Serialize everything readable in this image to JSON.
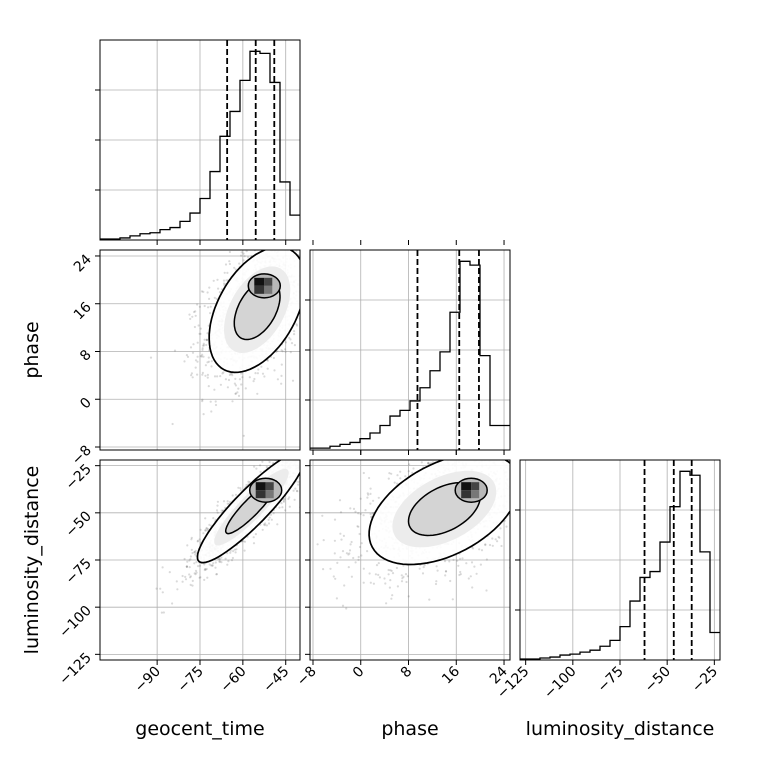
{
  "chart_data": {
    "type": "corner",
    "grid": true,
    "parameters": [
      "geocent_time",
      "phase",
      "luminosity_distance"
    ],
    "axis_labels": {
      "geocent_time": "geocent_time",
      "phase": "phase",
      "luminosity_distance": "luminosity_distance"
    },
    "ranges": {
      "geocent_time": [
        -110,
        -40
      ],
      "phase": [
        -8.5,
        25
      ],
      "luminosity_distance": [
        -128,
        -22
      ]
    },
    "ticks": {
      "geocent_time": [
        {
          "v": -90,
          "label": "−90"
        },
        {
          "v": -75,
          "label": "−75"
        },
        {
          "v": -60,
          "label": "−60"
        },
        {
          "v": -45,
          "label": "−45"
        }
      ],
      "phase": [
        {
          "v": -8,
          "label": "−8"
        },
        {
          "v": 0,
          "label": "0"
        },
        {
          "v": 8,
          "label": "8"
        },
        {
          "v": 16,
          "label": "16"
        },
        {
          "v": 24,
          "label": "24"
        }
      ],
      "luminosity_distance": [
        {
          "v": -125,
          "label": "−125"
        },
        {
          "v": -100,
          "label": "−100"
        },
        {
          "v": -75,
          "label": "−75"
        },
        {
          "v": -50,
          "label": "−50"
        },
        {
          "v": -25,
          "label": "−25"
        }
      ]
    },
    "histograms": {
      "geocent_time": {
        "bins": [
          -110,
          -106.5,
          -103,
          -99.5,
          -96,
          -92.5,
          -89,
          -85.5,
          -82,
          -78.5,
          -75,
          -71.5,
          -68,
          -64.5,
          -61,
          -57.5,
          -54,
          -50.5,
          -47,
          -43.5,
          -40
        ],
        "counts": [
          0.005,
          0.005,
          0.01,
          0.02,
          0.03,
          0.035,
          0.05,
          0.06,
          0.09,
          0.13,
          0.2,
          0.33,
          0.5,
          0.62,
          0.77,
          0.91,
          0.9,
          0.76,
          0.28,
          0.12
        ],
        "quantiles": [
          -65.5,
          -55.5,
          -49
        ]
      },
      "phase": {
        "bins": [
          -8.5,
          -6.825,
          -5.15,
          -3.475,
          -1.8,
          -0.125,
          1.55,
          3.225,
          4.9,
          6.575,
          8.25,
          9.925,
          11.6,
          13.275,
          14.95,
          16.625,
          18.3,
          19.975,
          21.65,
          23.325,
          25
        ],
        "counts": [
          0.01,
          0.01,
          0.02,
          0.03,
          0.04,
          0.06,
          0.09,
          0.13,
          0.18,
          0.21,
          0.26,
          0.33,
          0.42,
          0.52,
          0.73,
          1.0,
          0.98,
          0.5,
          0.13,
          0.13
        ],
        "quantiles": [
          9.5,
          16.5,
          19.8
        ]
      },
      "luminosity_distance": {
        "bins": [
          -128,
          -122.7,
          -117.4,
          -112.1,
          -106.8,
          -101.5,
          -96.2,
          -90.9,
          -85.6,
          -80.3,
          -75,
          -69.7,
          -64.4,
          -59.1,
          -53.8,
          -48.5,
          -43.2,
          -37.9,
          -32.6,
          -27.3,
          -22
        ],
        "counts": [
          0.005,
          0.005,
          0.01,
          0.015,
          0.025,
          0.03,
          0.04,
          0.05,
          0.07,
          0.1,
          0.17,
          0.3,
          0.42,
          0.45,
          0.6,
          0.78,
          0.96,
          0.94,
          0.55,
          0.14
        ],
        "quantiles": [
          -62,
          -46.5,
          -37
        ]
      }
    },
    "pairs": [
      {
        "x": "geocent_time",
        "y": "phase",
        "mean": [
          -55,
          15
        ],
        "sd": [
          8,
          5
        ],
        "rho": 0.45,
        "peak": [
          -52.5,
          19
        ]
      },
      {
        "x": "geocent_time",
        "y": "luminosity_distance",
        "mean": [
          -57,
          -47
        ],
        "sd": [
          9,
          14
        ],
        "rho": 0.9,
        "peak": [
          -52,
          -38
        ]
      },
      {
        "x": "phase",
        "y": "luminosity_distance",
        "mean": [
          14,
          -48
        ],
        "sd": [
          6,
          14
        ],
        "rho": 0.45,
        "peak": [
          18.5,
          -38
        ]
      }
    ]
  }
}
